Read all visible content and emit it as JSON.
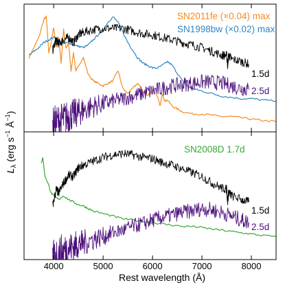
{
  "chart_data": {
    "type": "line",
    "xlabel": "Rest wavelength (Å)",
    "ylabel": "L_λ (erg s⁻¹ Å⁻¹)",
    "ylabel_parts": {
      "L": "L",
      "sub": "λ",
      "rest": " (erg s",
      "sup1": "−1",
      "mid": " Å",
      "sup2": "−1",
      "end": ")"
    },
    "xlim": [
      3400,
      8500
    ],
    "xticks": [
      4000,
      5000,
      6000,
      7000,
      8000
    ],
    "x_tick_labels": [
      "4000",
      "5000",
      "6000",
      "7000",
      "8000"
    ],
    "y_scale": "arbitrary",
    "grid": false,
    "panels": [
      {
        "name": "top",
        "ylim": [
          0,
          1
        ],
        "annotations": [
          {
            "text": "SN2011fe (×0.04) max",
            "color": "#f58a1f"
          },
          {
            "text": "SN1998bw (×0.02) max",
            "color": "#2e86c1"
          },
          {
            "text": "1.5d",
            "color": "#000000"
          },
          {
            "text": "2.5d",
            "color": "#4b0f7a"
          }
        ],
        "series": [
          {
            "id": "sn2011fe",
            "color": "#f58a1f",
            "x": [
              3500,
              3600,
              3700,
              3800,
              3850,
              3900,
              3950,
              4000,
              4050,
              4100,
              4150,
              4200,
              4250,
              4300,
              4350,
              4400,
              4450,
              4500,
              4600,
              4700,
              4800,
              4900,
              5000,
              5100,
              5200,
              5300,
              5400,
              5500,
              5600,
              5700,
              5800,
              5900,
              6000,
              6100,
              6150,
              6200,
              6250,
              6300,
              6400,
              6500,
              6600,
              6800,
              7000,
              7200,
              7400,
              7600,
              7800,
              8000,
              8200,
              8500
            ],
            "y": [
              0.58,
              0.66,
              0.74,
              0.88,
              0.9,
              0.62,
              0.7,
              0.82,
              0.66,
              0.74,
              0.54,
              0.8,
              0.65,
              0.7,
              0.48,
              0.62,
              0.47,
              0.52,
              0.58,
              0.45,
              0.4,
              0.38,
              0.36,
              0.38,
              0.4,
              0.48,
              0.34,
              0.3,
              0.34,
              0.38,
              0.32,
              0.28,
              0.33,
              0.28,
              0.2,
              0.3,
              0.24,
              0.25,
              0.2,
              0.18,
              0.16,
              0.14,
              0.14,
              0.13,
              0.12,
              0.12,
              0.11,
              0.1,
              0.09,
              0.08
            ]
          },
          {
            "id": "sn1998bw",
            "color": "#2e86c1",
            "x": [
              3500,
              3600,
              3700,
              3800,
              3900,
              4000,
              4100,
              4200,
              4300,
              4400,
              4500,
              4600,
              4700,
              4800,
              4900,
              5000,
              5100,
              5200,
              5300,
              5400,
              5500,
              5600,
              5700,
              5800,
              5900,
              6000,
              6100,
              6200,
              6300,
              6400,
              6500,
              6600,
              6700,
              6800,
              6900,
              7000,
              7200,
              7400,
              7600,
              7800,
              8000,
              8200,
              8500
            ],
            "y": [
              0.6,
              0.63,
              0.66,
              0.7,
              0.72,
              0.74,
              0.72,
              0.69,
              0.7,
              0.68,
              0.67,
              0.66,
              0.68,
              0.72,
              0.76,
              0.8,
              0.86,
              0.9,
              0.86,
              0.78,
              0.7,
              0.64,
              0.58,
              0.54,
              0.52,
              0.5,
              0.5,
              0.52,
              0.55,
              0.52,
              0.46,
              0.4,
              0.36,
              0.34,
              0.33,
              0.32,
              0.3,
              0.28,
              0.27,
              0.26,
              0.26,
              0.25,
              0.24
            ]
          },
          {
            "id": "sn2008d_1.5d_top",
            "color": "#000000",
            "x": [
              3980,
              4050,
              4100,
              4200,
              4300,
              4400,
              4500,
              4600,
              4800,
              5000,
              5200,
              5400,
              5600,
              5800,
              6000,
              6200,
              6400,
              6600,
              6800,
              7000,
              7200,
              7400,
              7500,
              7520,
              7540,
              7600,
              7800,
              7950
            ],
            "y": [
              0.64,
              0.72,
              0.69,
              0.72,
              0.74,
              0.7,
              0.76,
              0.78,
              0.8,
              0.81,
              0.81,
              0.81,
              0.79,
              0.77,
              0.76,
              0.74,
              0.72,
              0.7,
              0.68,
              0.66,
              0.63,
              0.6,
              0.6,
              0.52,
              0.6,
              0.57,
              0.55,
              0.53
            ]
          },
          {
            "id": "sn2008d_2.5d_top",
            "color": "#4b0f7a",
            "x": [
              3980,
              4100,
              4200,
              4300,
              4400,
              4500,
              4600,
              4800,
              5000,
              5200,
              5400,
              5600,
              5800,
              6000,
              6200,
              6400,
              6600,
              6800,
              7000,
              7200,
              7400,
              7600,
              7800,
              7950
            ],
            "y": [
              0.05,
              0.08,
              0.1,
              0.12,
              0.14,
              0.15,
              0.17,
              0.2,
              0.22,
              0.24,
              0.26,
              0.28,
              0.3,
              0.32,
              0.34,
              0.36,
              0.37,
              0.38,
              0.39,
              0.39,
              0.38,
              0.36,
              0.34,
              0.33
            ]
          }
        ]
      },
      {
        "name": "bottom",
        "ylim": [
          0,
          1
        ],
        "annotations": [
          {
            "text": "SN2008D 1.7d",
            "color": "#33aa33"
          },
          {
            "text": "1.5d",
            "color": "#000000"
          },
          {
            "text": "2.5d",
            "color": "#4b0f7a"
          }
        ],
        "series": [
          {
            "id": "sn2008d_1.7d",
            "color": "#33aa33",
            "x": [
              3750,
              3780,
              3820,
              3900,
              3950,
              4000,
              4100,
              4200,
              4300,
              4400,
              4500,
              4600,
              4700,
              4800,
              5000,
              5200,
              5400,
              5600,
              5800,
              6000,
              6200,
              6400,
              6600,
              6800,
              7000,
              7200,
              7400,
              7600,
              7800,
              8000,
              8200,
              8500
            ],
            "y": [
              0.76,
              0.8,
              0.66,
              0.58,
              0.52,
              0.5,
              0.47,
              0.5,
              0.47,
              0.45,
              0.43,
              0.42,
              0.4,
              0.38,
              0.36,
              0.34,
              0.32,
              0.31,
              0.3,
              0.29,
              0.28,
              0.27,
              0.26,
              0.26,
              0.25,
              0.24,
              0.23,
              0.22,
              0.21,
              0.2,
              0.19,
              0.18
            ]
          },
          {
            "id": "sn2008d_1.5d_bottom",
            "color": "#000000",
            "x": [
              3980,
              4050,
              4100,
              4200,
              4300,
              4400,
              4500,
              4600,
              4800,
              5000,
              5200,
              5400,
              5600,
              5800,
              6000,
              6200,
              6400,
              6600,
              6800,
              7000,
              7200,
              7400,
              7500,
              7520,
              7540,
              7600,
              7800,
              7950
            ],
            "y": [
              0.42,
              0.55,
              0.52,
              0.6,
              0.66,
              0.65,
              0.72,
              0.74,
              0.77,
              0.8,
              0.82,
              0.83,
              0.82,
              0.8,
              0.79,
              0.76,
              0.74,
              0.71,
              0.68,
              0.65,
              0.6,
              0.56,
              0.55,
              0.45,
              0.53,
              0.5,
              0.47,
              0.45
            ]
          },
          {
            "id": "sn2008d_2.5d_bottom",
            "color": "#4b0f7a",
            "x": [
              3980,
              4100,
              4200,
              4300,
              4400,
              4500,
              4600,
              4800,
              5000,
              5200,
              5400,
              5600,
              5800,
              6000,
              6200,
              6400,
              6600,
              6800,
              7000,
              7200,
              7400,
              7600,
              7800,
              7950
            ],
            "y": [
              0.02,
              0.05,
              0.07,
              0.09,
              0.1,
              0.12,
              0.13,
              0.16,
              0.18,
              0.21,
              0.23,
              0.26,
              0.28,
              0.31,
              0.33,
              0.35,
              0.37,
              0.38,
              0.4,
              0.39,
              0.37,
              0.34,
              0.31,
              0.29
            ]
          }
        ]
      }
    ]
  }
}
